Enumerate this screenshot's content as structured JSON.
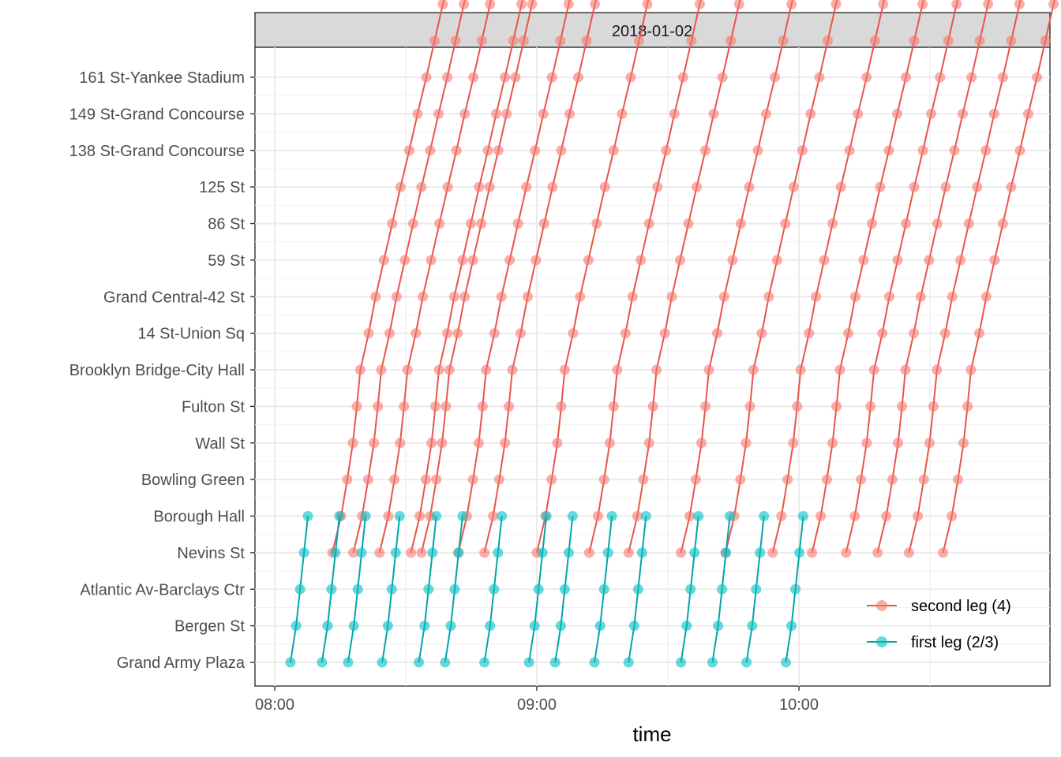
{
  "chart_data": {
    "type": "line",
    "panel_title": "2018-01-02",
    "xlabel": "time",
    "ylabel": "",
    "x_ticks": [
      "08:00",
      "09:00",
      "10:00"
    ],
    "xlim": [
      "07:55",
      "10:55"
    ],
    "stations": [
      "Grand Army Plaza",
      "Bergen St",
      "Atlantic Av-Barclays Ctr",
      "Nevins St",
      "Borough Hall",
      "Bowling Green",
      "Wall St",
      "Fulton St",
      "Brooklyn Bridge-City Hall",
      "14 St-Union Sq",
      "Grand Central-42 St",
      "59 St",
      "86 St",
      "125 St",
      "138 St-Grand Concourse",
      "149 St-Grand Concourse",
      "161 St-Yankee Stadium"
    ],
    "grid": true,
    "legend_position": "bottom-right inside",
    "series": [
      {
        "name": "second leg (4)",
        "color": "#F8766D",
        "line_color": "#E7554B",
        "start_station_index": 3,
        "trips_start_minutes": [
          8.22,
          8.3,
          8.4,
          8.52,
          8.56,
          8.7,
          8.8,
          9.0,
          9.2,
          9.35,
          9.55,
          9.72,
          9.9,
          10.05,
          10.18,
          10.3,
          10.42,
          10.55
        ],
        "cumulative_minutes": [
          0,
          2.0,
          3.4,
          4.7,
          5.6,
          6.4,
          8.3,
          9.9,
          11.8,
          13.7,
          15.6,
          17.6,
          19.5,
          21.5,
          23.4,
          25.3,
          27.3,
          29.3,
          31.2
        ]
      },
      {
        "name": "first leg (2/3)",
        "color": "#00BFC4",
        "line_color": "#00A6AA",
        "start_station_index": 0,
        "trips_start_minutes": [
          8.06,
          8.18,
          8.28,
          8.41,
          8.55,
          8.65,
          8.8,
          8.97,
          9.07,
          9.22,
          9.35,
          9.55,
          9.67,
          9.8,
          9.95
        ],
        "cumulative_minutes": [
          0,
          1.3,
          2.2,
          3.1,
          4.0
        ]
      }
    ],
    "data_note_key": ""
  }
}
